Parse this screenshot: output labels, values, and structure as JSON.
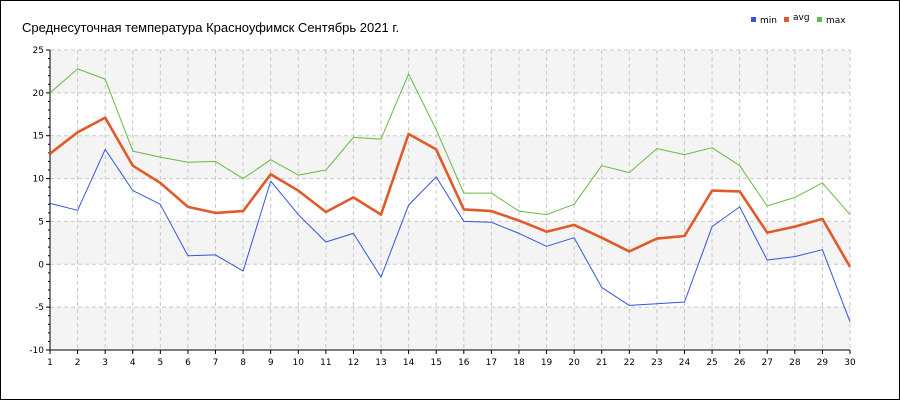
{
  "chart_data": {
    "type": "line",
    "title": "Среднесуточная температура Красноуфимск  Сентябрь 2021 г.",
    "xlabel": "",
    "ylabel": "",
    "x": [
      1,
      2,
      3,
      4,
      5,
      6,
      7,
      8,
      9,
      10,
      11,
      12,
      13,
      14,
      15,
      16,
      17,
      18,
      19,
      20,
      21,
      22,
      23,
      24,
      25,
      26,
      27,
      28,
      29,
      30
    ],
    "ylim": [
      -10,
      25
    ],
    "yticks": [
      -10,
      -5,
      0,
      5,
      10,
      15,
      20,
      25
    ],
    "grid": true,
    "legend_position": "top-right",
    "series": [
      {
        "name": "min",
        "color": "#3355dd",
        "values": [
          7.1,
          6.3,
          13.4,
          8.6,
          7.0,
          1.0,
          1.1,
          -0.8,
          9.7,
          5.8,
          2.6,
          3.6,
          -1.5,
          6.9,
          10.2,
          5.0,
          4.9,
          3.6,
          2.1,
          3.1,
          -2.7,
          -4.8,
          -4.6,
          -4.4,
          4.4,
          6.7,
          0.5,
          0.9,
          1.7,
          -6.7
        ]
      },
      {
        "name": "avg",
        "color": "#e05a2a",
        "values": [
          12.9,
          15.4,
          17.1,
          11.5,
          9.5,
          6.7,
          6.0,
          6.2,
          10.5,
          8.6,
          6.1,
          7.8,
          5.8,
          15.2,
          13.4,
          6.4,
          6.2,
          5.1,
          3.8,
          4.6,
          3.1,
          1.5,
          3.0,
          3.3,
          8.6,
          8.5,
          3.7,
          4.4,
          5.3,
          -0.3
        ]
      },
      {
        "name": "max",
        "color": "#66bb44",
        "values": [
          20.0,
          22.8,
          21.6,
          13.2,
          12.5,
          11.9,
          12.0,
          10.0,
          12.2,
          10.4,
          11.0,
          14.8,
          14.6,
          22.2,
          15.7,
          8.3,
          8.3,
          6.2,
          5.8,
          7.0,
          11.5,
          10.7,
          13.5,
          12.8,
          13.6,
          11.5,
          6.8,
          7.8,
          9.5,
          5.8
        ]
      }
    ]
  }
}
